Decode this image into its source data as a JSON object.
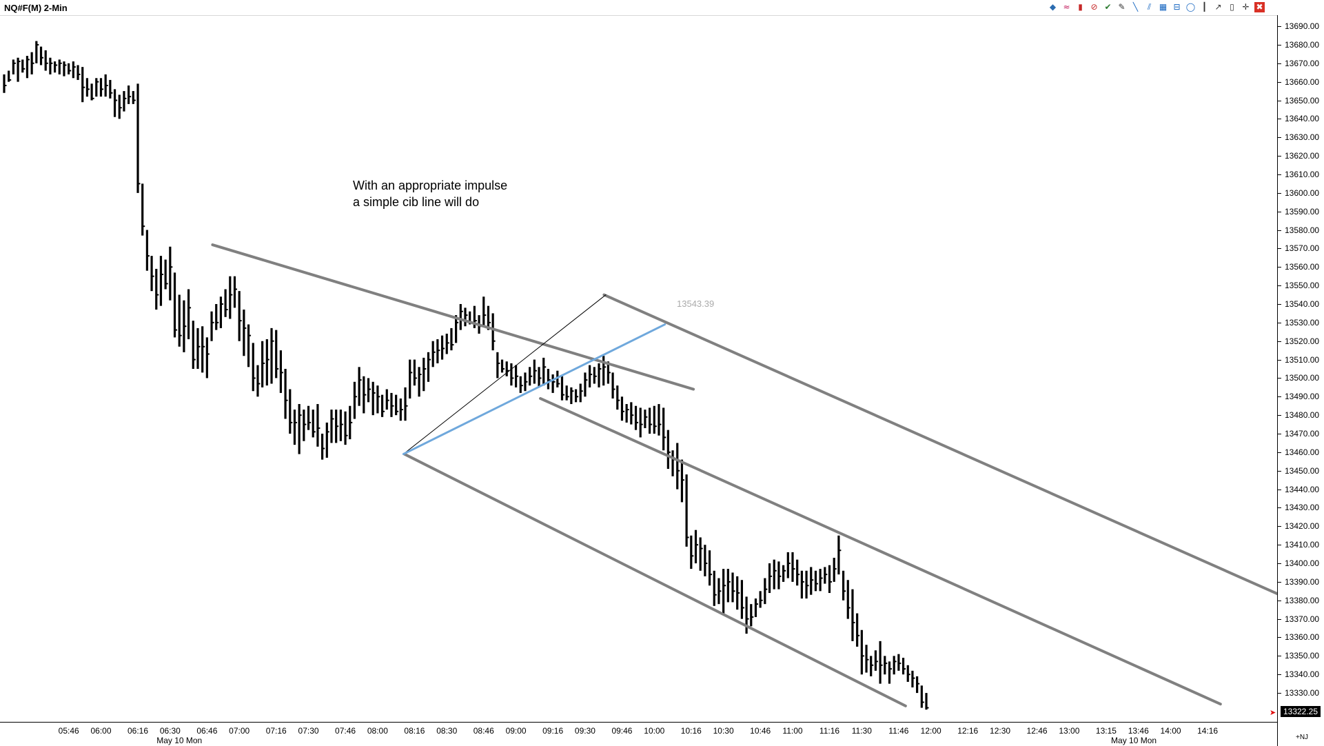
{
  "window": {
    "title": "NQ#F(M) 2-Min"
  },
  "toolbar": {
    "icons": [
      "objects-icon",
      "waves-icon",
      "candle-icon",
      "no-entry-icon",
      "check-icon",
      "pencil-icon",
      "trendline-icon",
      "channel-icon",
      "grid-icon",
      "fib-icon",
      "circle-icon",
      "vertical-line-icon",
      "arrow-icon",
      "box-icon",
      "crosshair-icon",
      "close-icon"
    ],
    "glyphs": [
      "◆",
      "≈",
      "▮",
      "⊘",
      "✔",
      "✎",
      "╲",
      "⫽",
      "▦",
      "⊟",
      "◯",
      "┃",
      "↗",
      "▯",
      "✛",
      "✖"
    ],
    "colors": [
      "#2b6cb0",
      "#c2185b",
      "#c62828",
      "#c62828",
      "#2e7d32",
      "#333333",
      "#1565c0",
      "#1565c0",
      "#1565c0",
      "#1565c0",
      "#1565c0",
      "#333333",
      "#333333",
      "#333333",
      "#333333",
      "#ffffff"
    ]
  },
  "annotation": {
    "line1": "With an appropriate impulse",
    "line2": "a simple cib line will do"
  },
  "floating_price": "13543.39",
  "last_price": "13322.25",
  "axis_footer": "+NJ",
  "chart_data": {
    "type": "ohlc",
    "symbol": "NQ#F(M)",
    "interval": "2-Min",
    "ylim": [
      13317,
      13693
    ],
    "y_ticks": [
      13330,
      13340,
      13350,
      13360,
      13370,
      13380,
      13390,
      13400,
      13410,
      13420,
      13430,
      13440,
      13450,
      13460,
      13470,
      13480,
      13490,
      13500,
      13510,
      13520,
      13530,
      13540,
      13550,
      13560,
      13570,
      13580,
      13590,
      13600,
      13610,
      13620,
      13630,
      13640,
      13650,
      13660,
      13670,
      13680,
      13690
    ],
    "y_tick_labels": [
      "13330.00",
      "13340.00",
      "13350.00",
      "13360.00",
      "13370.00",
      "13380.00",
      "13390.00",
      "13400.00",
      "13410.00",
      "13420.00",
      "13430.00",
      "13440.00",
      "13450.00",
      "13460.00",
      "13470.00",
      "13480.00",
      "13490.00",
      "13500.00",
      "13510.00",
      "13520.00",
      "13530.00",
      "13540.00",
      "13550.00",
      "13560.00",
      "13570.00",
      "13580.00",
      "13590.00",
      "13600.00",
      "13610.00",
      "13620.00",
      "13630.00",
      "13640.00",
      "13650.00",
      "13660.00",
      "13670.00",
      "13680.00",
      "13690.00"
    ],
    "x_ticks": [
      {
        "label": "05:46",
        "bar": 14
      },
      {
        "label": "06:00",
        "bar": 21
      },
      {
        "label": "06:16",
        "bar": 29
      },
      {
        "label": "06:30",
        "bar": 36
      },
      {
        "label": "06:46",
        "bar": 44
      },
      {
        "label": "07:00",
        "bar": 51
      },
      {
        "label": "07:16",
        "bar": 59
      },
      {
        "label": "07:30",
        "bar": 66
      },
      {
        "label": "07:46",
        "bar": 74
      },
      {
        "label": "08:00",
        "bar": 81
      },
      {
        "label": "08:16",
        "bar": 89
      },
      {
        "label": "08:30",
        "bar": 96
      },
      {
        "label": "08:46",
        "bar": 104
      },
      {
        "label": "09:00",
        "bar": 111
      },
      {
        "label": "09:16",
        "bar": 119
      },
      {
        "label": "09:30",
        "bar": 126
      },
      {
        "label": "09:46",
        "bar": 134
      },
      {
        "label": "10:00",
        "bar": 141
      },
      {
        "label": "10:16",
        "bar": 149
      },
      {
        "label": "10:30",
        "bar": 156
      },
      {
        "label": "10:46",
        "bar": 164
      },
      {
        "label": "11:00",
        "bar": 171
      },
      {
        "label": "11:16",
        "bar": 179
      },
      {
        "label": "11:30",
        "bar": 186
      },
      {
        "label": "11:46",
        "bar": 194
      },
      {
        "label": "12:00",
        "bar": 201
      },
      {
        "label": "12:16",
        "bar": 209
      },
      {
        "label": "12:30",
        "bar": 216
      },
      {
        "label": "12:46",
        "bar": 224
      },
      {
        "label": "13:00",
        "bar": 231
      },
      {
        "label": "13:15",
        "bar": 239
      },
      {
        "label": "13:46",
        "bar": 246
      },
      {
        "label": "14:00",
        "bar": 253
      },
      {
        "label": "14:16",
        "bar": 261
      }
    ],
    "date_labels": [
      {
        "label": "May 10 Mon",
        "bar": 38
      },
      {
        "label": "May 10 Mon",
        "bar": 245
      }
    ],
    "bars": [
      [
        13664,
        13654,
        13658
      ],
      [
        13666,
        13660,
        13661
      ],
      [
        13672,
        13664,
        13670
      ],
      [
        13673,
        13660,
        13671
      ],
      [
        13672,
        13665,
        13667
      ],
      [
        13674,
        13662,
        13672
      ],
      [
        13676,
        13664,
        13670
      ],
      [
        13682,
        13670,
        13680
      ],
      [
        13679,
        13669,
        13673
      ],
      [
        13677,
        13666,
        13670
      ],
      [
        13673,
        13664,
        13670
      ],
      [
        13671,
        13665,
        13669
      ],
      [
        13672,
        13664,
        13670
      ],
      [
        13671,
        13663,
        13669
      ],
      [
        13670,
        13664,
        13666
      ],
      [
        13671,
        13662,
        13668
      ],
      [
        13669,
        13661,
        13664
      ],
      [
        13668,
        13649,
        13657
      ],
      [
        13662,
        13652,
        13656
      ],
      [
        13659,
        13650,
        13651
      ],
      [
        13662,
        13652,
        13660
      ],
      [
        13662,
        13652,
        13656
      ],
      [
        13664,
        13652,
        13658
      ],
      [
        13661,
        13651,
        13654
      ],
      [
        13656,
        13641,
        13650
      ],
      [
        13653,
        13640,
        13646
      ],
      [
        13655,
        13644,
        13651
      ],
      [
        13658,
        13648,
        13652
      ],
      [
        13655,
        13648,
        13650
      ],
      [
        13659,
        13600,
        13605
      ],
      [
        13605,
        13577,
        13582
      ],
      [
        13580,
        13558,
        13566
      ],
      [
        13566,
        13547,
        13555
      ],
      [
        13559,
        13537,
        13545
      ],
      [
        13566,
        13539,
        13556
      ],
      [
        13564,
        13548,
        13551
      ],
      [
        13571,
        13542,
        13560
      ],
      [
        13557,
        13522,
        13526
      ],
      [
        13545,
        13517,
        13523
      ],
      [
        13542,
        13514,
        13528
      ],
      [
        13548,
        13521,
        13538
      ],
      [
        13531,
        13505,
        13510
      ],
      [
        13527,
        13505,
        13517
      ],
      [
        13528,
        13503,
        13517
      ],
      [
        13522,
        13500,
        13513
      ],
      [
        13536,
        13520,
        13530
      ],
      [
        13540,
        13526,
        13530
      ],
      [
        13544,
        13527,
        13540
      ],
      [
        13548,
        13533,
        13537
      ],
      [
        13555,
        13532,
        13545
      ],
      [
        13555,
        13538,
        13548
      ],
      [
        13547,
        13520,
        13531
      ],
      [
        13537,
        13512,
        13527
      ],
      [
        13529,
        13506,
        13523
      ],
      [
        13519,
        13493,
        13500
      ],
      [
        13507,
        13490,
        13497
      ],
      [
        13520,
        13495,
        13508
      ],
      [
        13521,
        13496,
        13510
      ],
      [
        13527,
        13497,
        13520
      ],
      [
        13526,
        13500,
        13505
      ],
      [
        13515,
        13492,
        13503
      ],
      [
        13505,
        13478,
        13488
      ],
      [
        13494,
        13470,
        13476
      ],
      [
        13483,
        13464,
        13476
      ],
      [
        13486,
        13459,
        13480
      ],
      [
        13483,
        13466,
        13475
      ],
      [
        13485,
        13472,
        13476
      ],
      [
        13483,
        13468,
        13471
      ],
      [
        13486,
        13463,
        13473
      ],
      [
        13470,
        13456,
        13462
      ],
      [
        13476,
        13457,
        13471
      ],
      [
        13483,
        13465,
        13478
      ],
      [
        13483,
        13465,
        13474
      ],
      [
        13483,
        13466,
        13475
      ],
      [
        13482,
        13464,
        13469
      ],
      [
        13485,
        13467,
        13476
      ],
      [
        13498,
        13478,
        13490
      ],
      [
        13506,
        13485,
        13499
      ],
      [
        13501,
        13481,
        13491
      ],
      [
        13500,
        13487,
        13494
      ],
      [
        13498,
        13480,
        13492
      ],
      [
        13496,
        13481,
        13490
      ],
      [
        13491,
        13479,
        13482
      ],
      [
        13494,
        13483,
        13488
      ],
      [
        13492,
        13479,
        13485
      ],
      [
        13491,
        13480,
        13482
      ],
      [
        13489,
        13477,
        13483
      ],
      [
        13495,
        13477,
        13485
      ],
      [
        13510,
        13489,
        13503
      ],
      [
        13510,
        13496,
        13500
      ],
      [
        13506,
        13490,
        13502
      ],
      [
        13511,
        13493,
        13505
      ],
      [
        13514,
        13498,
        13510
      ],
      [
        13520,
        13506,
        13514
      ],
      [
        13521,
        13508,
        13515
      ],
      [
        13523,
        13510,
        13516
      ],
      [
        13524,
        13513,
        13519
      ],
      [
        13527,
        13515,
        13518
      ],
      [
        13534,
        13519,
        13530
      ],
      [
        13540,
        13526,
        13536
      ],
      [
        13538,
        13528,
        13534
      ],
      [
        13536,
        13529,
        13530
      ],
      [
        13539,
        13527,
        13531
      ],
      [
        13534,
        13524,
        13528
      ],
      [
        13544,
        13528,
        13534
      ],
      [
        13539,
        13526,
        13530
      ],
      [
        13535,
        13515,
        13520
      ],
      [
        13514,
        13500,
        13508
      ],
      [
        13510,
        13503,
        13505
      ],
      [
        13509,
        13501,
        13504
      ],
      [
        13508,
        13496,
        13500
      ],
      [
        13507,
        13495,
        13501
      ],
      [
        13501,
        13492,
        13496
      ],
      [
        13503,
        13493,
        13498
      ],
      [
        13506,
        13496,
        13501
      ],
      [
        13510,
        13497,
        13504
      ],
      [
        13506,
        13495,
        13500
      ],
      [
        13511,
        13496,
        13506
      ],
      [
        13505,
        13494,
        13499
      ],
      [
        13502,
        13492,
        13498
      ],
      [
        13504,
        13495,
        13497
      ],
      [
        13501,
        13488,
        13491
      ],
      [
        13496,
        13488,
        13490
      ],
      [
        13495,
        13486,
        13493
      ],
      [
        13494,
        13487,
        13490
      ],
      [
        13497,
        13487,
        13493
      ],
      [
        13503,
        13490,
        13499
      ],
      [
        13507,
        13495,
        13502
      ],
      [
        13506,
        13497,
        13501
      ],
      [
        13508,
        13495,
        13505
      ],
      [
        13512,
        13496,
        13506
      ],
      [
        13509,
        13497,
        13503
      ],
      [
        13503,
        13489,
        13494
      ],
      [
        13496,
        13483,
        13488
      ],
      [
        13490,
        13477,
        13482
      ],
      [
        13486,
        13476,
        13483
      ],
      [
        13487,
        13475,
        13480
      ],
      [
        13485,
        13472,
        13476
      ],
      [
        13484,
        13468,
        13475
      ],
      [
        13483,
        13473,
        13479
      ],
      [
        13484,
        13470,
        13475
      ],
      [
        13485,
        13470,
        13474
      ],
      [
        13486,
        13469,
        13475
      ],
      [
        13484,
        13461,
        13468
      ],
      [
        13472,
        13451,
        13460
      ],
      [
        13461,
        13447,
        13456
      ],
      [
        13465,
        13440,
        13450
      ],
      [
        13456,
        13433,
        13445
      ],
      [
        13448,
        13409,
        13414
      ],
      [
        13415,
        13397,
        13404
      ],
      [
        13418,
        13400,
        13410
      ],
      [
        13414,
        13396,
        13408
      ],
      [
        13410,
        13393,
        13400
      ],
      [
        13407,
        13388,
        13394
      ],
      [
        13396,
        13377,
        13383
      ],
      [
        13392,
        13378,
        13385
      ],
      [
        13397,
        13373,
        13388
      ],
      [
        13397,
        13379,
        13390
      ],
      [
        13395,
        13379,
        13385
      ],
      [
        13393,
        13375,
        13384
      ],
      [
        13391,
        13370,
        13376
      ],
      [
        13382,
        13362,
        13370
      ],
      [
        13378,
        13366,
        13371
      ],
      [
        13381,
        13371,
        13378
      ],
      [
        13385,
        13376,
        13380
      ],
      [
        13392,
        13378,
        13386
      ],
      [
        13400,
        13384,
        13393
      ],
      [
        13402,
        13386,
        13396
      ],
      [
        13401,
        13386,
        13393
      ],
      [
        13399,
        13390,
        13396
      ],
      [
        13406,
        13392,
        13400
      ],
      [
        13406,
        13390,
        13397
      ],
      [
        13402,
        13388,
        13394
      ],
      [
        13396,
        13381,
        13390
      ],
      [
        13396,
        13381,
        13388
      ],
      [
        13398,
        13383,
        13391
      ],
      [
        13396,
        13385,
        13389
      ],
      [
        13397,
        13385,
        13392
      ],
      [
        13398,
        13389,
        13394
      ],
      [
        13399,
        13384,
        13390
      ],
      [
        13403,
        13390,
        13397
      ],
      [
        13415,
        13394,
        13407
      ],
      [
        13396,
        13380,
        13385
      ],
      [
        13391,
        13370,
        13376
      ],
      [
        13386,
        13358,
        13368
      ],
      [
        13373,
        13355,
        13361
      ],
      [
        13364,
        13340,
        13350
      ],
      [
        13356,
        13341,
        13348
      ],
      [
        13350,
        13339,
        13345
      ],
      [
        13353,
        13342,
        13347
      ],
      [
        13358,
        13335,
        13345
      ],
      [
        13350,
        13340,
        13346
      ],
      [
        13347,
        13335,
        13343
      ],
      [
        13350,
        13340,
        13347
      ],
      [
        13351,
        13342,
        13346
      ],
      [
        13349,
        13340,
        13343
      ],
      [
        13345,
        13336,
        13340
      ],
      [
        13342,
        13333,
        13338
      ],
      [
        13339,
        13330,
        13335
      ],
      [
        13334,
        13322,
        13325
      ],
      [
        13330,
        13321,
        13322
      ]
    ],
    "lines": [
      {
        "name": "channel-upper-left",
        "color": "#808080",
        "width": 4,
        "x1": 45.2,
        "y1": 13572,
        "x2": 149.5,
        "y2": 13494
      },
      {
        "name": "channel-lower-left",
        "color": "#808080",
        "width": 4,
        "x1": 86.8,
        "y1": 13459,
        "x2": 195.5,
        "y2": 13323
      },
      {
        "name": "channel-upper-right",
        "color": "#808080",
        "width": 4,
        "x1": 130.1,
        "y1": 13545,
        "x2": 287.5,
        "y2": 13371
      },
      {
        "name": "channel-middle",
        "color": "#808080",
        "width": 4,
        "x1": 116.3,
        "y1": 13489,
        "x2": 263.8,
        "y2": 13324
      },
      {
        "name": "impulse-thin",
        "color": "#000000",
        "width": 1,
        "x1": 86.6,
        "y1": 13459,
        "x2": 130.5,
        "y2": 13545
      },
      {
        "name": "cib-line",
        "color": "#6fa8dc",
        "width": 3,
        "x1": 86.6,
        "y1": 13459,
        "x2": 143.3,
        "y2": 13529
      }
    ]
  }
}
